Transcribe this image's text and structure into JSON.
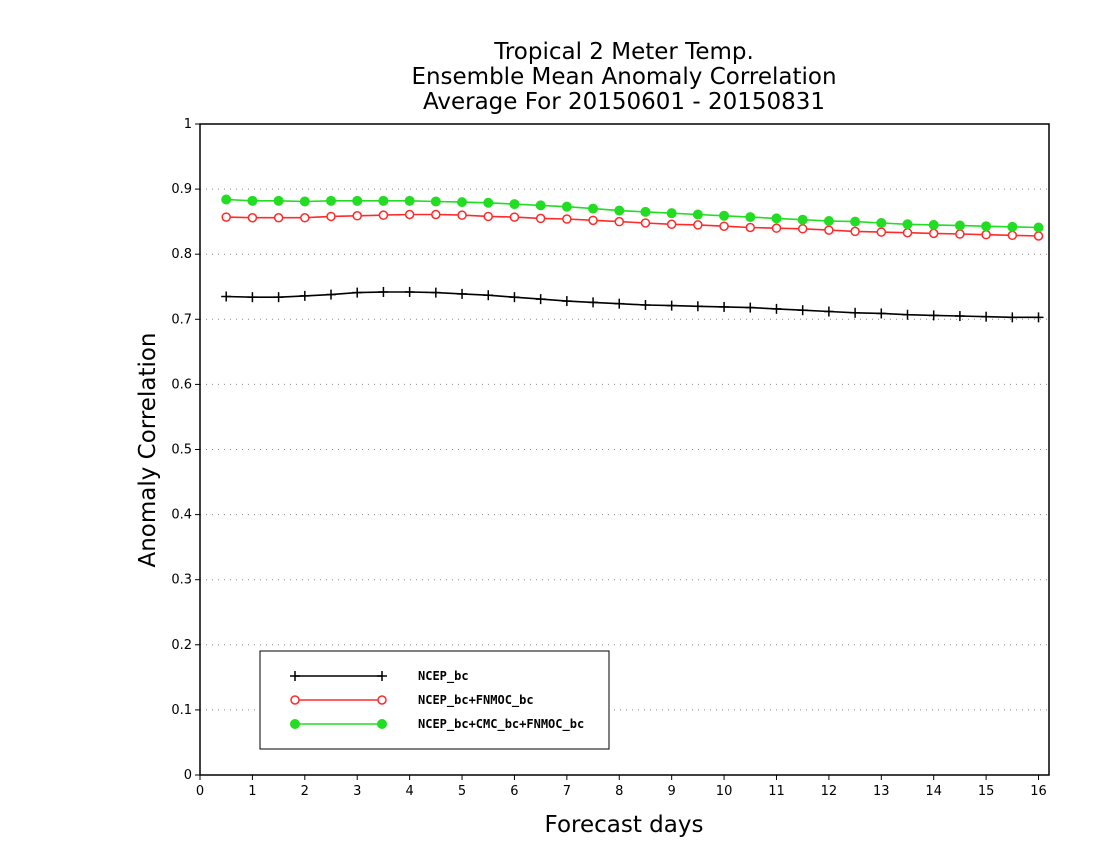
{
  "chart_data": {
    "type": "line",
    "title": [
      "Tropical 2 Meter Temp.",
      "Ensemble Mean Anomaly Correlation",
      "Average For 20150601 - 20150831"
    ],
    "xlabel": "Forecast days",
    "ylabel": "Anomaly Correlation",
    "xlim": [
      0,
      16.2
    ],
    "ylim": [
      0,
      1
    ],
    "xticks": [
      "0",
      "1",
      "2",
      "3",
      "4",
      "5",
      "6",
      "7",
      "8",
      "9",
      "10",
      "11",
      "12",
      "13",
      "14",
      "15",
      "16"
    ],
    "yticks": [
      "0",
      "0.1",
      "0.2",
      "0.3",
      "0.4",
      "0.5",
      "0.6",
      "0.7",
      "0.8",
      "0.9",
      "1"
    ],
    "grid": "dotted horizontal",
    "legend_position": "bottom-left",
    "x": [
      0.5,
      1,
      1.5,
      2,
      2.5,
      3,
      3.5,
      4,
      4.5,
      5,
      5.5,
      6,
      6.5,
      7,
      7.5,
      8,
      8.5,
      9,
      9.5,
      10,
      10.5,
      11,
      11.5,
      12,
      12.5,
      13,
      13.5,
      14,
      14.5,
      15,
      15.5,
      16
    ],
    "series": [
      {
        "name": "NCEP_bc",
        "color": "#000000",
        "marker": "plus",
        "values": [
          0.735,
          0.734,
          0.734,
          0.736,
          0.738,
          0.741,
          0.742,
          0.742,
          0.741,
          0.739,
          0.737,
          0.734,
          0.731,
          0.728,
          0.726,
          0.724,
          0.722,
          0.721,
          0.72,
          0.719,
          0.718,
          0.716,
          0.714,
          0.712,
          0.71,
          0.709,
          0.707,
          0.706,
          0.705,
          0.704,
          0.703,
          0.703
        ]
      },
      {
        "name": "NCEP_bc+FNMOC_bc",
        "color": "#ff2a2a",
        "marker": "open-circle",
        "values": [
          0.857,
          0.856,
          0.856,
          0.856,
          0.858,
          0.859,
          0.86,
          0.861,
          0.861,
          0.86,
          0.858,
          0.857,
          0.855,
          0.854,
          0.852,
          0.85,
          0.848,
          0.846,
          0.845,
          0.843,
          0.841,
          0.84,
          0.839,
          0.837,
          0.835,
          0.834,
          0.833,
          0.832,
          0.831,
          0.83,
          0.829,
          0.828
        ]
      },
      {
        "name": "NCEP_bc+CMC_bc+FNMOC_bc",
        "color": "#22dd22",
        "marker": "filled-circle",
        "values": [
          0.884,
          0.882,
          0.882,
          0.881,
          0.882,
          0.882,
          0.882,
          0.882,
          0.881,
          0.88,
          0.879,
          0.877,
          0.875,
          0.873,
          0.87,
          0.867,
          0.865,
          0.863,
          0.861,
          0.859,
          0.857,
          0.855,
          0.853,
          0.851,
          0.85,
          0.848,
          0.846,
          0.845,
          0.844,
          0.843,
          0.842,
          0.841
        ]
      }
    ]
  }
}
